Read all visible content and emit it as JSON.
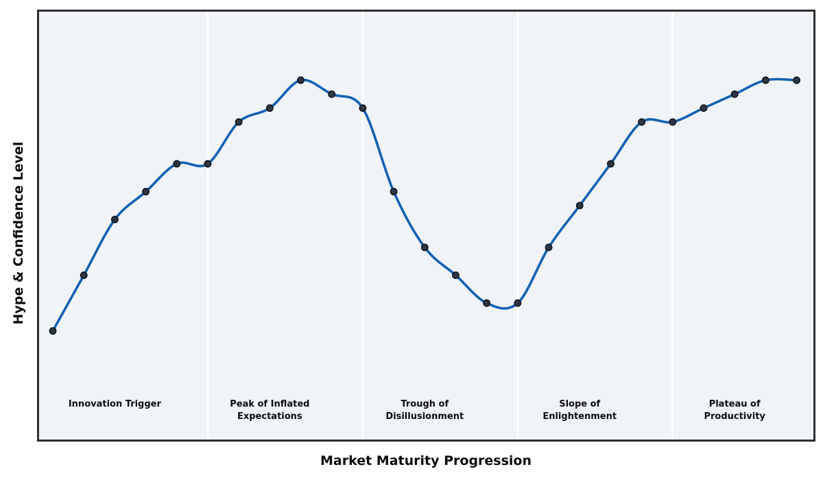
{
  "chart_data": {
    "type": "line",
    "title": "",
    "xlabel": "Market Maturity Progression",
    "ylabel": "Hype & Confidence Level",
    "x": [
      0,
      1,
      2,
      3,
      4,
      5,
      6,
      7,
      8,
      9,
      10,
      11,
      12,
      13,
      14,
      15,
      16,
      17,
      18,
      19,
      20,
      21,
      22,
      23,
      24
    ],
    "values": [
      10,
      30,
      50,
      60,
      70,
      70,
      85,
      90,
      100,
      95,
      90,
      60,
      40,
      30,
      20,
      20,
      40,
      55,
      70,
      85,
      85,
      90,
      95,
      100,
      100
    ],
    "xlim": [
      -0.45,
      24.55
    ],
    "ylim": [
      -29,
      125
    ],
    "grid": false,
    "legend": false,
    "smooth_spline": true,
    "phase_boundaries_x": [
      5,
      10,
      15,
      20
    ],
    "phases": [
      {
        "label": "Innovation Trigger",
        "lines": [
          "Innovation Trigger"
        ],
        "center_x": 2
      },
      {
        "label": "Peak of Inflated Expectations",
        "lines": [
          "Peak of Inflated",
          "Expectations"
        ],
        "center_x": 7
      },
      {
        "label": "Trough of Disillusionment",
        "lines": [
          "Trough of",
          "Disillusionment"
        ],
        "center_x": 12
      },
      {
        "label": "Slope of Enlightenment",
        "lines": [
          "Slope of",
          "Enlightenment"
        ],
        "center_x": 17
      },
      {
        "label": "Plateau of Productivity",
        "lines": [
          "Plateau of",
          "Productivity"
        ],
        "center_x": 22
      }
    ]
  },
  "colors": {
    "line": "#1560b2",
    "marker_fill": "#2e3844",
    "marker_edge": "#111722",
    "plot_background": "#f0f4f8",
    "page_background": "#ffffff",
    "plot_border": "#2e2e2e",
    "phase_divider": "#ffffff",
    "label_text": "#0c0c0c"
  }
}
